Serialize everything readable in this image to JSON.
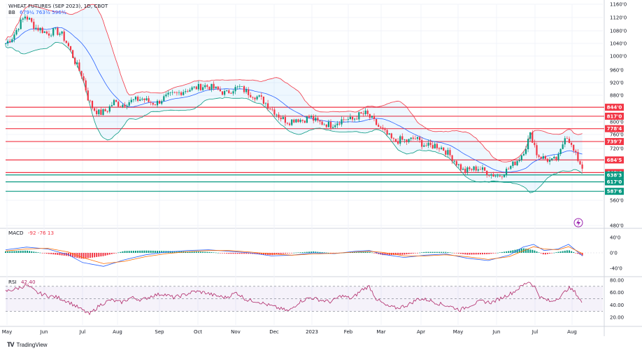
{
  "chart_data": {
    "type": "candlestick",
    "title": "WHEAT FUTURES (SEP 2023), 1D, CBOT",
    "indicators": {
      "bb_label": "BB",
      "bb_values": "679¼ 763½ 596¾",
      "macd_label": "MACD",
      "macd_values": "-92  -76  13",
      "rsi_label": "RSI",
      "rsi_values": "42.40"
    },
    "price_axis": {
      "ticks": [
        "1160'0",
        "1120'0",
        "1080'0",
        "1040'0",
        "1000'0",
        "960'0",
        "920'0",
        "880'0",
        "800'0",
        "760'0",
        "720'0",
        "560'0",
        "480'0"
      ],
      "ylim": [
        480,
        1160
      ]
    },
    "macd_axis": {
      "ticks": [
        "40'0",
        "0'0",
        "-40'0"
      ]
    },
    "rsi_axis": {
      "ticks": [
        "80.00",
        "60.00",
        "40.00",
        "20.00"
      ]
    },
    "x_ticks": [
      "May",
      "Jun",
      "Jul",
      "Aug",
      "Sep",
      "Oct",
      "Nov",
      "Dec",
      "2023",
      "Feb",
      "Mar",
      "Apr",
      "May",
      "Jun",
      "Jul",
      "Aug"
    ],
    "horizontal_levels": [
      {
        "label": "844'0",
        "value": 844,
        "color": "#f23645"
      },
      {
        "label": "817'0",
        "value": 817,
        "color": "#f23645"
      },
      {
        "label": "778'4",
        "value": 778.5,
        "color": "#f23645"
      },
      {
        "label": "739'7",
        "value": 739.875,
        "color": "#f23645"
      },
      {
        "label": "684'5",
        "value": 684.625,
        "color": "#f23645"
      },
      {
        "label": "645'6",
        "value": 645.75,
        "color": "#f23645"
      },
      {
        "label": "638'3",
        "value": 638.375,
        "color": "#089981"
      },
      {
        "label": "617'0",
        "value": 617,
        "color": "#089981"
      },
      {
        "label": "587'6",
        "value": 587.75,
        "color": "#089981"
      }
    ],
    "close_path": [
      [
        0,
        1040
      ],
      [
        10,
        1060
      ],
      [
        20,
        1100
      ],
      [
        28,
        1125
      ],
      [
        35,
        1110
      ],
      [
        42,
        1090
      ],
      [
        50,
        1085
      ],
      [
        60,
        1070
      ],
      [
        70,
        1080
      ],
      [
        80,
        1070
      ],
      [
        90,
        1030
      ],
      [
        100,
        980
      ],
      [
        110,
        940
      ],
      [
        118,
        870
      ],
      [
        125,
        840
      ],
      [
        135,
        825
      ],
      [
        145,
        835
      ],
      [
        155,
        860
      ],
      [
        165,
        850
      ],
      [
        175,
        860
      ],
      [
        185,
        865
      ],
      [
        195,
        870
      ],
      [
        205,
        860
      ],
      [
        215,
        855
      ],
      [
        225,
        870
      ],
      [
        235,
        880
      ],
      [
        245,
        885
      ],
      [
        255,
        895
      ],
      [
        265,
        900
      ],
      [
        275,
        905
      ],
      [
        285,
        910
      ],
      [
        295,
        905
      ],
      [
        305,
        895
      ],
      [
        315,
        885
      ],
      [
        325,
        900
      ],
      [
        335,
        905
      ],
      [
        345,
        890
      ],
      [
        355,
        880
      ],
      [
        365,
        870
      ],
      [
        375,
        850
      ],
      [
        385,
        830
      ],
      [
        395,
        810
      ],
      [
        405,
        800
      ],
      [
        415,
        810
      ],
      [
        425,
        805
      ],
      [
        435,
        815
      ],
      [
        445,
        800
      ],
      [
        455,
        795
      ],
      [
        465,
        790
      ],
      [
        475,
        800
      ],
      [
        485,
        810
      ],
      [
        495,
        805
      ],
      [
        505,
        820
      ],
      [
        515,
        825
      ],
      [
        525,
        805
      ],
      [
        535,
        780
      ],
      [
        545,
        760
      ],
      [
        555,
        740
      ],
      [
        565,
        745
      ],
      [
        575,
        740
      ],
      [
        585,
        750
      ],
      [
        595,
        735
      ],
      [
        605,
        725
      ],
      [
        615,
        730
      ],
      [
        625,
        720
      ],
      [
        635,
        700
      ],
      [
        645,
        675
      ],
      [
        655,
        650
      ],
      [
        665,
        655
      ],
      [
        675,
        660
      ],
      [
        685,
        650
      ],
      [
        695,
        640
      ],
      [
        705,
        635
      ],
      [
        715,
        650
      ],
      [
        725,
        670
      ],
      [
        735,
        690
      ],
      [
        745,
        730
      ],
      [
        750,
        760
      ],
      [
        755,
        740
      ],
      [
        760,
        700
      ],
      [
        770,
        690
      ],
      [
        780,
        680
      ],
      [
        790,
        690
      ],
      [
        795,
        720
      ],
      [
        800,
        760
      ],
      [
        805,
        750
      ],
      [
        810,
        720
      ],
      [
        815,
        700
      ],
      [
        820,
        680
      ],
      [
        825,
        660
      ]
    ],
    "macd_line": [
      [
        0,
        8
      ],
      [
        30,
        15
      ],
      [
        60,
        10
      ],
      [
        90,
        -5
      ],
      [
        110,
        -25
      ],
      [
        140,
        -35
      ],
      [
        170,
        -18
      ],
      [
        200,
        -5
      ],
      [
        230,
        2
      ],
      [
        260,
        6
      ],
      [
        290,
        8
      ],
      [
        320,
        4
      ],
      [
        350,
        0
      ],
      [
        380,
        -8
      ],
      [
        410,
        -6
      ],
      [
        440,
        0
      ],
      [
        470,
        -2
      ],
      [
        500,
        4
      ],
      [
        520,
        6
      ],
      [
        540,
        -4
      ],
      [
        570,
        -12
      ],
      [
        600,
        -6
      ],
      [
        630,
        -3
      ],
      [
        660,
        -14
      ],
      [
        690,
        -20
      ],
      [
        720,
        -6
      ],
      [
        740,
        15
      ],
      [
        755,
        22
      ],
      [
        770,
        6
      ],
      [
        790,
        10
      ],
      [
        805,
        22
      ],
      [
        825,
        -8
      ]
    ],
    "signal_line": [
      [
        0,
        5
      ],
      [
        30,
        10
      ],
      [
        60,
        12
      ],
      [
        90,
        2
      ],
      [
        110,
        -12
      ],
      [
        140,
        -28
      ],
      [
        170,
        -22
      ],
      [
        200,
        -10
      ],
      [
        230,
        -2
      ],
      [
        260,
        3
      ],
      [
        290,
        6
      ],
      [
        320,
        6
      ],
      [
        350,
        2
      ],
      [
        380,
        -3
      ],
      [
        410,
        -6
      ],
      [
        440,
        -3
      ],
      [
        470,
        -1
      ],
      [
        500,
        2
      ],
      [
        520,
        4
      ],
      [
        540,
        1
      ],
      [
        570,
        -8
      ],
      [
        600,
        -8
      ],
      [
        630,
        -5
      ],
      [
        660,
        -10
      ],
      [
        690,
        -17
      ],
      [
        720,
        -10
      ],
      [
        740,
        5
      ],
      [
        755,
        16
      ],
      [
        770,
        10
      ],
      [
        790,
        8
      ],
      [
        805,
        16
      ],
      [
        825,
        -2
      ]
    ],
    "rsi_line": [
      [
        0,
        62
      ],
      [
        15,
        66
      ],
      [
        30,
        72
      ],
      [
        45,
        60
      ],
      [
        60,
        55
      ],
      [
        75,
        52
      ],
      [
        90,
        45
      ],
      [
        105,
        35
      ],
      [
        120,
        25
      ],
      [
        135,
        40
      ],
      [
        150,
        48
      ],
      [
        165,
        44
      ],
      [
        180,
        52
      ],
      [
        195,
        48
      ],
      [
        210,
        55
      ],
      [
        225,
        58
      ],
      [
        240,
        52
      ],
      [
        255,
        56
      ],
      [
        270,
        62
      ],
      [
        285,
        60
      ],
      [
        300,
        55
      ],
      [
        315,
        52
      ],
      [
        330,
        60
      ],
      [
        345,
        48
      ],
      [
        360,
        46
      ],
      [
        375,
        40
      ],
      [
        390,
        35
      ],
      [
        405,
        30
      ],
      [
        420,
        45
      ],
      [
        435,
        52
      ],
      [
        450,
        48
      ],
      [
        465,
        45
      ],
      [
        480,
        55
      ],
      [
        495,
        50
      ],
      [
        510,
        65
      ],
      [
        520,
        70
      ],
      [
        530,
        50
      ],
      [
        545,
        38
      ],
      [
        560,
        35
      ],
      [
        575,
        40
      ],
      [
        590,
        50
      ],
      [
        605,
        48
      ],
      [
        620,
        42
      ],
      [
        635,
        38
      ],
      [
        650,
        32
      ],
      [
        665,
        40
      ],
      [
        680,
        46
      ],
      [
        695,
        44
      ],
      [
        710,
        52
      ],
      [
        725,
        60
      ],
      [
        740,
        72
      ],
      [
        748,
        78
      ],
      [
        756,
        70
      ],
      [
        765,
        52
      ],
      [
        780,
        45
      ],
      [
        795,
        55
      ],
      [
        805,
        68
      ],
      [
        815,
        60
      ],
      [
        825,
        42
      ]
    ],
    "rsi_bands": [
      30,
      70
    ]
  }
}
